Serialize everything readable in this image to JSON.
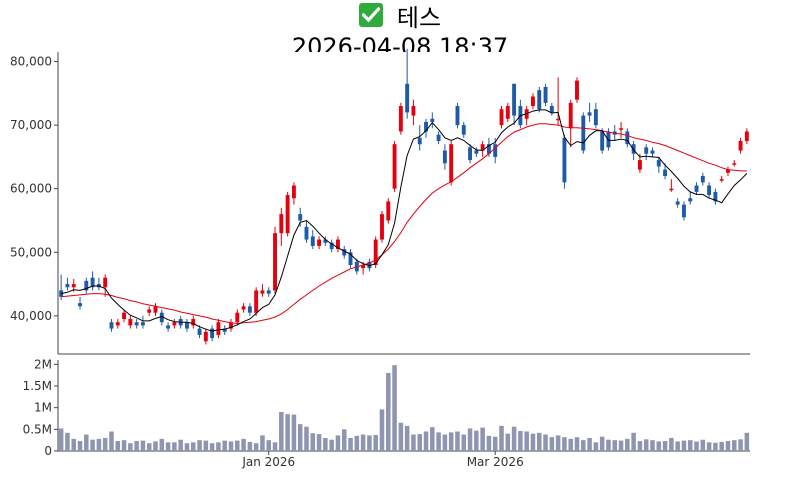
{
  "title": {
    "name": "테스",
    "datetime": "2026-04-08 18:37",
    "icon": "check-mark-icon"
  },
  "colors": {
    "up": "#e3000f",
    "down": "#1f5aa6",
    "ma_short": "#000000",
    "ma_long": "#e3000f",
    "volume": "#8d95b0"
  },
  "chart_data": [
    {
      "type": "candlestick",
      "panel": "price",
      "ylim": [
        34000,
        81500
      ],
      "yticks": [
        40000,
        50000,
        60000,
        70000,
        80000
      ],
      "ytick_labels": [
        "40,000",
        "50,000",
        "60,000",
        "70,000",
        "80,000"
      ],
      "xticks": [
        {
          "index": 33,
          "label": "Jan 2026"
        },
        {
          "index": 69,
          "label": "Mar 2026"
        }
      ],
      "candles": [
        [
          44000,
          43000,
          46500,
          42500
        ],
        [
          45000,
          44500,
          46000,
          44000
        ],
        [
          44500,
          45000,
          45800,
          43800
        ],
        [
          42000,
          41500,
          43000,
          41000
        ],
        [
          45500,
          44000,
          46000,
          43500
        ],
        [
          46000,
          44500,
          47000,
          44000
        ],
        [
          45000,
          44500,
          46000,
          44000
        ],
        [
          44500,
          46000,
          46500,
          43000
        ],
        [
          39000,
          38000,
          39500,
          37500
        ],
        [
          38500,
          39000,
          39500,
          38000
        ],
        [
          39500,
          40500,
          41000,
          39000
        ],
        [
          38500,
          39500,
          40000,
          38000
        ],
        [
          39000,
          38500,
          39500,
          38000
        ],
        [
          39000,
          38500,
          40000,
          38000
        ],
        [
          40500,
          41000,
          41500,
          40000
        ],
        [
          40500,
          41500,
          42000,
          40000
        ],
        [
          40500,
          39000,
          41000,
          38500
        ],
        [
          38500,
          38000,
          39000,
          37500
        ],
        [
          38500,
          39000,
          39500,
          38000
        ],
        [
          39500,
          38500,
          40000,
          38000
        ],
        [
          39000,
          38000,
          39500,
          37500
        ],
        [
          38500,
          39500,
          40000,
          38000
        ],
        [
          38000,
          37000,
          38500,
          36500
        ],
        [
          36000,
          37500,
          38000,
          35500
        ],
        [
          38000,
          36500,
          38500,
          36000
        ],
        [
          37000,
          39000,
          39500,
          36500
        ],
        [
          38000,
          37500,
          38500,
          37000
        ],
        [
          38000,
          39000,
          39500,
          37500
        ],
        [
          39000,
          40500,
          41000,
          38500
        ],
        [
          41000,
          41500,
          42000,
          40500
        ],
        [
          41500,
          40500,
          42000,
          40000
        ],
        [
          40500,
          44000,
          44500,
          40000
        ],
        [
          43500,
          44000,
          45000,
          43000
        ],
        [
          44000,
          43500,
          44500,
          43000
        ],
        [
          44000,
          53000,
          54000,
          43500
        ],
        [
          53000,
          56000,
          57000,
          51000
        ],
        [
          53000,
          59000,
          59500,
          52500
        ],
        [
          58500,
          60500,
          61000,
          57500
        ],
        [
          56000,
          55000,
          57000,
          54000
        ],
        [
          54000,
          52000,
          55000,
          51500
        ],
        [
          52500,
          51000,
          53500,
          50500
        ],
        [
          51000,
          52000,
          52500,
          50500
        ],
        [
          52000,
          51500,
          52500,
          51000
        ],
        [
          51500,
          50500,
          52000,
          50000
        ],
        [
          50500,
          52000,
          52500,
          50000
        ],
        [
          50500,
          49500,
          51000,
          49000
        ],
        [
          50000,
          48000,
          50500,
          47500
        ],
        [
          48500,
          47000,
          49000,
          46500
        ],
        [
          47500,
          48000,
          48500,
          46500
        ],
        [
          48500,
          47500,
          49000,
          47000
        ],
        [
          48000,
          52000,
          52500,
          47500
        ],
        [
          52000,
          56000,
          56500,
          51500
        ],
        [
          55000,
          58000,
          58500,
          54500
        ],
        [
          60000,
          67000,
          67500,
          59500
        ],
        [
          69000,
          73000,
          73500,
          68500
        ],
        [
          76500,
          72000,
          82000,
          71000
        ],
        [
          71500,
          73000,
          74000,
          70000
        ],
        [
          68000,
          67000,
          70000,
          66000
        ],
        [
          70500,
          69000,
          71000,
          68000
        ],
        [
          71000,
          70500,
          72000,
          69500
        ],
        [
          68500,
          67500,
          69000,
          67000
        ],
        [
          66000,
          64000,
          67000,
          63000
        ],
        [
          61000,
          67000,
          67500,
          60500
        ],
        [
          73000,
          70000,
          73500,
          69500
        ],
        [
          70000,
          68500,
          70500,
          68000
        ],
        [
          66500,
          64500,
          67000,
          64000
        ],
        [
          66000,
          65500,
          66500,
          65000
        ],
        [
          66000,
          67000,
          67500,
          65000
        ],
        [
          67000,
          65500,
          68000,
          65000
        ],
        [
          67000,
          65000,
          68000,
          64000
        ],
        [
          70000,
          72500,
          73000,
          69500
        ],
        [
          71000,
          73000,
          73500,
          70500
        ],
        [
          76500,
          71500,
          76500,
          70000
        ],
        [
          73000,
          70000,
          74000,
          69500
        ],
        [
          71000,
          72500,
          73000,
          70000
        ],
        [
          73000,
          74500,
          75000,
          72500
        ],
        [
          75500,
          72500,
          76000,
          72000
        ],
        [
          76000,
          73500,
          76500,
          73000
        ],
        [
          73000,
          72000,
          73500,
          71500
        ],
        [
          71000,
          71000,
          77500,
          70000
        ],
        [
          68000,
          61000,
          68500,
          60000
        ],
        [
          69500,
          73500,
          74000,
          66500
        ],
        [
          74000,
          77000,
          77500,
          73500
        ],
        [
          71500,
          66000,
          72000,
          65500
        ],
        [
          72000,
          71500,
          73500,
          70500
        ],
        [
          72500,
          70000,
          73500,
          69500
        ],
        [
          69000,
          66000,
          69500,
          65500
        ],
        [
          69000,
          66500,
          69500,
          66000
        ],
        [
          69000,
          68500,
          70000,
          67500
        ],
        [
          69500,
          69500,
          70500,
          68000
        ],
        [
          69000,
          67000,
          69500,
          66500
        ],
        [
          67000,
          65500,
          67500,
          64500
        ],
        [
          63000,
          64500,
          65500,
          62500
        ],
        [
          66500,
          65500,
          67000,
          64500
        ],
        [
          66000,
          65500,
          66500,
          65000
        ],
        [
          64500,
          63500,
          65000,
          62500
        ],
        [
          63000,
          62000,
          64000,
          61500
        ],
        [
          60000,
          60000,
          61500,
          59500
        ],
        [
          58000,
          57500,
          58500,
          57000
        ],
        [
          57500,
          55500,
          58000,
          55000
        ],
        [
          58500,
          58000,
          59500,
          57500
        ],
        [
          60500,
          59500,
          61000,
          59000
        ],
        [
          62000,
          61000,
          62500,
          60500
        ],
        [
          60500,
          59000,
          61000,
          58500
        ],
        [
          59500,
          58000,
          60000,
          57500
        ],
        [
          61500,
          61500,
          62000,
          61000
        ],
        [
          62500,
          63000,
          63500,
          62000
        ],
        [
          64000,
          64000,
          64500,
          63500
        ],
        [
          66000,
          67500,
          68000,
          65500
        ],
        [
          67500,
          69000,
          69500,
          67000
        ]
      ],
      "ma_short": [
        43500,
        43700,
        44100,
        44000,
        44300,
        44700,
        44700,
        44300,
        42800,
        41800,
        40900,
        40100,
        39700,
        39200,
        39200,
        39600,
        39900,
        39400,
        39100,
        39000,
        39000,
        38800,
        38300,
        37900,
        37600,
        37800,
        37900,
        38200,
        38600,
        39100,
        39500,
        40400,
        41300,
        41800,
        43300,
        46100,
        49400,
        52700,
        54700,
        55000,
        54100,
        53000,
        52000,
        51300,
        50700,
        50200,
        49700,
        48700,
        48200,
        47900,
        48200,
        49600,
        51200,
        54600,
        60300,
        65200,
        67800,
        68200,
        69100,
        70400,
        69300,
        68000,
        67600,
        68000,
        67600,
        66800,
        66100,
        66000,
        66800,
        67300,
        68800,
        69700,
        70300,
        71500,
        71800,
        72200,
        72400,
        72400,
        71900,
        72000,
        68100,
        66800,
        67400,
        67200,
        68400,
        69100,
        69100,
        67600,
        67600,
        67800,
        67600,
        66100,
        65000,
        65100,
        65000,
        64900,
        63700,
        62700,
        61600,
        60400,
        59500,
        59100,
        59100,
        58500,
        58200,
        57800,
        59200,
        60500,
        61400,
        62400
      ],
      "ma_long": [
        43000,
        43100,
        43200,
        43300,
        43400,
        43500,
        43500,
        43400,
        43200,
        42900,
        42700,
        42400,
        42200,
        41900,
        41700,
        41500,
        41300,
        41100,
        40900,
        40600,
        40400,
        40200,
        40000,
        39800,
        39500,
        39300,
        39100,
        38900,
        38800,
        38900,
        39000,
        39100,
        39300,
        39500,
        39800,
        40300,
        41000,
        41800,
        42600,
        43300,
        44000,
        44700,
        45300,
        45900,
        46400,
        46900,
        47400,
        47700,
        48000,
        48300,
        48800,
        49600,
        50500,
        51700,
        53100,
        54700,
        56000,
        57200,
        58300,
        59300,
        60000,
        60600,
        61100,
        61800,
        62500,
        63300,
        64000,
        64700,
        65500,
        66400,
        67300,
        68200,
        68900,
        69300,
        69700,
        70000,
        70200,
        70200,
        70100,
        70000,
        69700,
        69600,
        69600,
        69500,
        69400,
        69300,
        69100,
        68900,
        68700,
        68600,
        68400,
        68000,
        67800,
        67600,
        67300,
        67100,
        66800,
        66400,
        66000,
        65600,
        65200,
        64800,
        64400,
        64000,
        63700,
        63300,
        63000,
        62900,
        62800,
        62800
      ]
    },
    {
      "type": "bar",
      "panel": "volume",
      "ylim": [
        0,
        2100000
      ],
      "yticks": [
        0,
        500000,
        1000000,
        1500000,
        2000000
      ],
      "ytick_labels": [
        "0",
        "0.5M",
        "1M",
        "1.5M",
        "2M"
      ],
      "values": [
        520000,
        420000,
        280000,
        230000,
        380000,
        260000,
        280000,
        300000,
        450000,
        230000,
        250000,
        180000,
        230000,
        240000,
        180000,
        220000,
        280000,
        200000,
        200000,
        260000,
        180000,
        200000,
        250000,
        240000,
        180000,
        200000,
        240000,
        220000,
        240000,
        280000,
        210000,
        180000,
        360000,
        250000,
        200000,
        900000,
        850000,
        840000,
        620000,
        560000,
        410000,
        390000,
        300000,
        260000,
        360000,
        500000,
        300000,
        350000,
        380000,
        360000,
        370000,
        960000,
        1800000,
        1980000,
        650000,
        580000,
        380000,
        390000,
        450000,
        550000,
        430000,
        380000,
        430000,
        450000,
        380000,
        520000,
        470000,
        540000,
        350000,
        330000,
        580000,
        400000,
        560000,
        460000,
        450000,
        400000,
        420000,
        380000,
        320000,
        360000,
        320000,
        280000,
        320000,
        250000,
        300000,
        200000,
        330000,
        260000,
        250000,
        240000,
        280000,
        420000,
        230000,
        270000,
        250000,
        220000,
        230000,
        300000,
        220000,
        240000,
        250000,
        220000,
        260000,
        200000,
        190000,
        210000,
        230000,
        250000,
        270000,
        420000
      ]
    }
  ]
}
